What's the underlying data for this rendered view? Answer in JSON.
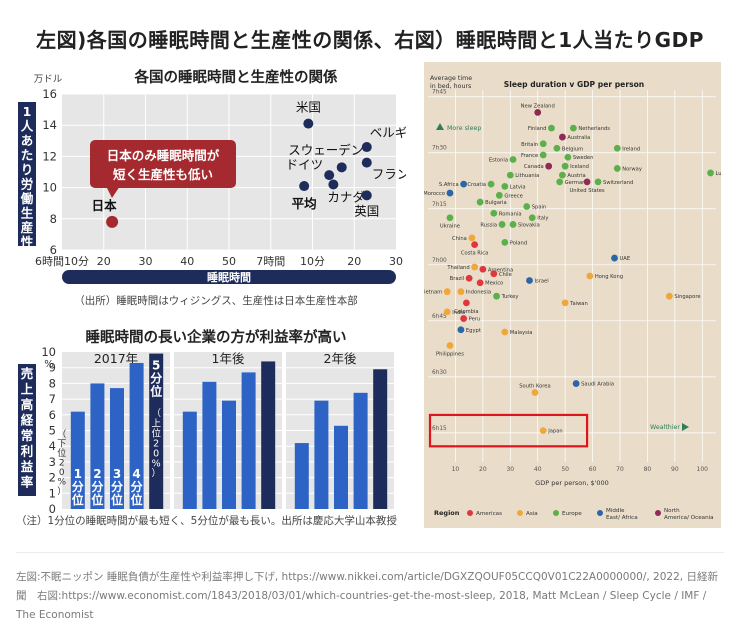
{
  "page": {
    "title": "左図)各国の睡眠時間と生産性の関係、右図）睡眠時間と1人当たりGDP",
    "footer": "左図:不眠ニッポン 睡眠負債が生産性や利益率押し下げ, https://www.nikkei.com/article/DGXZQOUF05CCQ0V01C22A0000000/, 2022, 日経新聞　右図:https://www.economist.com/1843/2018/03/01/which-countries-get-the-most-sleep, 2018, Matt McLean / Sleep Cycle / IMF / The Economist"
  },
  "colors": {
    "dark_navy": "#1e2c5c",
    "japan_red": "#a52a2f",
    "bar_blue": "#2d63c5",
    "bar_dark": "#1e2c5c",
    "beige": "#e9ddc9",
    "highlight": "#e0141b",
    "americas": "#e0373f",
    "asia": "#f0a73a",
    "europe": "#5cb04b",
    "mideast_africa": "#2b66a8",
    "na_oceania": "#8e2a55"
  },
  "chart_data": [
    {
      "type": "scatter",
      "title": "各国の睡眠時間と生産性の関係",
      "ylabel": "1人あたり労働生産性",
      "yunit": "万ドル",
      "xlabel": "睡眠時間",
      "source": "（出所）睡眠時間はウィジングス、生産性は日本生産性本部",
      "ylim": [
        6,
        16
      ],
      "yticks": [
        "6",
        "8",
        "10",
        "12",
        "14",
        "16"
      ],
      "xlim": [
        370,
        450
      ],
      "xticks": [
        {
          "value": 370,
          "label": "6時間10分"
        },
        {
          "value": 380,
          "label": "20"
        },
        {
          "value": 390,
          "label": "30"
        },
        {
          "value": 400,
          "label": "40"
        },
        {
          "value": 410,
          "label": "50"
        },
        {
          "value": 420,
          "label": "7時間"
        },
        {
          "value": 430,
          "label": "10分"
        },
        {
          "value": 440,
          "label": "20"
        },
        {
          "value": 450,
          "label": "30"
        }
      ],
      "annotation": [
        "日本のみ睡眠時間が",
        "短く生産性も低い"
      ],
      "points": [
        {
          "label": "日本",
          "x": 382,
          "y": 7.8,
          "highlight": true
        },
        {
          "label": "米国",
          "x": 429,
          "y": 14.1
        },
        {
          "label": "ベルギー",
          "x": 443,
          "y": 12.6
        },
        {
          "label": "スウェーデン",
          "x": 437,
          "y": 11.3
        },
        {
          "label": "ドイツ",
          "x": 434,
          "y": 10.8
        },
        {
          "label": "フランス",
          "x": 443,
          "y": 11.6
        },
        {
          "label": "カナダ",
          "x": 435,
          "y": 10.2
        },
        {
          "label": "平均",
          "x": 428,
          "y": 10.1
        },
        {
          "label": "英国",
          "x": 443,
          "y": 9.5
        }
      ]
    },
    {
      "type": "bar",
      "title": "睡眠時間の長い企業の方が利益率が高い",
      "ylabel": "売上高経常利益率",
      "yunit": "%",
      "ylim": [
        0,
        10
      ],
      "yticks": [
        "0",
        "1",
        "2",
        "3",
        "4",
        "5",
        "6",
        "7",
        "8",
        "9",
        "10"
      ],
      "note": "（注）1分位の睡眠時間が最も短く、5分位が最も長い。出所は慶応大学山本教授",
      "lower_note": "（下位20%）",
      "upper_note": "（上位20%）",
      "categories": [
        "1分位",
        "2分位",
        "3分位",
        "4分位",
        "5分位"
      ],
      "groups": [
        {
          "label": "2017年",
          "values": [
            6.2,
            8.0,
            7.7,
            9.3,
            9.9
          ]
        },
        {
          "label": "1年後",
          "values": [
            6.2,
            8.1,
            6.9,
            8.7,
            9.4
          ]
        },
        {
          "label": "2年後",
          "values": [
            4.2,
            6.9,
            5.3,
            7.4,
            8.9
          ]
        }
      ]
    },
    {
      "type": "scatter",
      "title": "Sleep duration v GDP per person",
      "ylabel": "Average time in bed, hours",
      "xlabel": "GDP per person, $'000",
      "xlim": [
        0,
        105
      ],
      "xticks": [
        10,
        20,
        30,
        40,
        50,
        60,
        70,
        80,
        90,
        100
      ],
      "ylim": [
        6.12,
        7.78
      ],
      "yticks": [
        {
          "value": 6.25,
          "label": "6h15"
        },
        {
          "value": 6.5,
          "label": "6h30"
        },
        {
          "value": 6.75,
          "label": "6h45"
        },
        {
          "value": 7.0,
          "label": "7h00"
        },
        {
          "value": 7.25,
          "label": "7h15"
        },
        {
          "value": 7.5,
          "label": "7h30"
        },
        {
          "value": 7.75,
          "label": "7h45"
        }
      ],
      "annotations": [
        "More sleep",
        "Wealthier"
      ],
      "legend_title": "Region",
      "legend": [
        {
          "name": "Americas",
          "key": "americas"
        },
        {
          "name": "Asia",
          "key": "asia"
        },
        {
          "name": "Europe",
          "key": "europe"
        },
        {
          "name": "Middle East/ Africa",
          "key": "mideast_africa"
        },
        {
          "name": "North America/ Oceania",
          "key": "na_oceania"
        }
      ],
      "highlight_box": {
        "label": "Japan",
        "x": [
          0,
          58
        ],
        "y": [
          6.19,
          6.33
        ]
      },
      "points": [
        {
          "label": "New Zealand",
          "x": 40,
          "y": 7.68,
          "r": "na_oceania"
        },
        {
          "label": "Netherlands",
          "x": 53,
          "y": 7.61,
          "r": "europe"
        },
        {
          "label": "Finland",
          "x": 45,
          "y": 7.61,
          "r": "europe"
        },
        {
          "label": "Australia",
          "x": 49,
          "y": 7.57,
          "r": "na_oceania"
        },
        {
          "label": "Britain",
          "x": 42,
          "y": 7.54,
          "r": "europe"
        },
        {
          "label": "Belgium",
          "x": 47,
          "y": 7.52,
          "r": "europe"
        },
        {
          "label": "Ireland",
          "x": 69,
          "y": 7.52,
          "r": "europe"
        },
        {
          "label": "France",
          "x": 42,
          "y": 7.49,
          "r": "europe"
        },
        {
          "label": "Sweden",
          "x": 51,
          "y": 7.48,
          "r": "europe"
        },
        {
          "label": "Estonia",
          "x": 31,
          "y": 7.47,
          "r": "europe"
        },
        {
          "label": "Canada",
          "x": 44,
          "y": 7.44,
          "r": "na_oceania"
        },
        {
          "label": "Iceland",
          "x": 50,
          "y": 7.44,
          "r": "europe"
        },
        {
          "label": "Norway",
          "x": 69,
          "y": 7.43,
          "r": "europe"
        },
        {
          "label": "Luxembourg",
          "x": 103,
          "y": 7.41,
          "r": "europe"
        },
        {
          "label": "Lithuania",
          "x": 30,
          "y": 7.4,
          "r": "europe"
        },
        {
          "label": "Austria",
          "x": 49,
          "y": 7.4,
          "r": "europe"
        },
        {
          "label": "Switzerland",
          "x": 62,
          "y": 7.37,
          "r": "europe"
        },
        {
          "label": "Germany",
          "x": 48,
          "y": 7.37,
          "r": "europe"
        },
        {
          "label": "United States",
          "x": 58,
          "y": 7.37,
          "r": "na_oceania"
        },
        {
          "label": "S.Africa",
          "x": 13,
          "y": 7.36,
          "r": "mideast_africa"
        },
        {
          "label": "Croatia",
          "x": 23,
          "y": 7.36,
          "r": "europe"
        },
        {
          "label": "Latvia",
          "x": 28,
          "y": 7.35,
          "r": "europe"
        },
        {
          "label": "Morocco",
          "x": 8,
          "y": 7.32,
          "r": "mideast_africa"
        },
        {
          "label": "Greece",
          "x": 26,
          "y": 7.31,
          "r": "europe"
        },
        {
          "label": "Bulgaria",
          "x": 19,
          "y": 7.28,
          "r": "europe"
        },
        {
          "label": "Spain",
          "x": 36,
          "y": 7.26,
          "r": "europe"
        },
        {
          "label": "Romania",
          "x": 24,
          "y": 7.23,
          "r": "europe"
        },
        {
          "label": "Italy",
          "x": 38,
          "y": 7.21,
          "r": "europe"
        },
        {
          "label": "Ukraine",
          "x": 8,
          "y": 7.21,
          "r": "europe"
        },
        {
          "label": "Russia",
          "x": 27,
          "y": 7.18,
          "r": "europe"
        },
        {
          "label": "Slovakia",
          "x": 31,
          "y": 7.18,
          "r": "europe"
        },
        {
          "label": "China",
          "x": 16,
          "y": 7.12,
          "r": "asia"
        },
        {
          "label": "Costa Rica",
          "x": 17,
          "y": 7.09,
          "r": "americas"
        },
        {
          "label": "Poland",
          "x": 28,
          "y": 7.1,
          "r": "europe"
        },
        {
          "label": "UAE",
          "x": 68,
          "y": 7.03,
          "r": "mideast_africa"
        },
        {
          "label": "Thailand",
          "x": 17,
          "y": 6.99,
          "r": "asia"
        },
        {
          "label": "Argentina",
          "x": 20,
          "y": 6.98,
          "r": "americas"
        },
        {
          "label": "Chile",
          "x": 24,
          "y": 6.96,
          "r": "americas"
        },
        {
          "label": "Hong Kong",
          "x": 59,
          "y": 6.95,
          "r": "asia"
        },
        {
          "label": "Brazil",
          "x": 15,
          "y": 6.94,
          "r": "americas"
        },
        {
          "label": "Israel",
          "x": 37,
          "y": 6.93,
          "r": "mideast_africa"
        },
        {
          "label": "Mexico",
          "x": 19,
          "y": 6.92,
          "r": "americas"
        },
        {
          "label": "Vietnam",
          "x": 7,
          "y": 6.88,
          "r": "asia"
        },
        {
          "label": "Indonesia",
          "x": 12,
          "y": 6.88,
          "r": "asia"
        },
        {
          "label": "Singapore",
          "x": 88,
          "y": 6.86,
          "r": "asia"
        },
        {
          "label": "Turkey",
          "x": 25,
          "y": 6.86,
          "r": "europe"
        },
        {
          "label": "Taiwan",
          "x": 50,
          "y": 6.83,
          "r": "asia"
        },
        {
          "label": "Colombia",
          "x": 14,
          "y": 6.83,
          "r": "americas"
        },
        {
          "label": "India",
          "x": 7,
          "y": 6.79,
          "r": "asia"
        },
        {
          "label": "Peru",
          "x": 13,
          "y": 6.76,
          "r": "americas"
        },
        {
          "label": "Egypt",
          "x": 12,
          "y": 6.71,
          "r": "mideast_africa"
        },
        {
          "label": "Malaysia",
          "x": 28,
          "y": 6.7,
          "r": "asia"
        },
        {
          "label": "Philippines",
          "x": 8,
          "y": 6.64,
          "r": "asia"
        },
        {
          "label": "Saudi Arabia",
          "x": 54,
          "y": 6.47,
          "r": "mideast_africa"
        },
        {
          "label": "South Korea",
          "x": 39,
          "y": 6.43,
          "r": "asia"
        },
        {
          "label": "Japan",
          "x": 42,
          "y": 6.26,
          "r": "asia"
        }
      ]
    }
  ]
}
